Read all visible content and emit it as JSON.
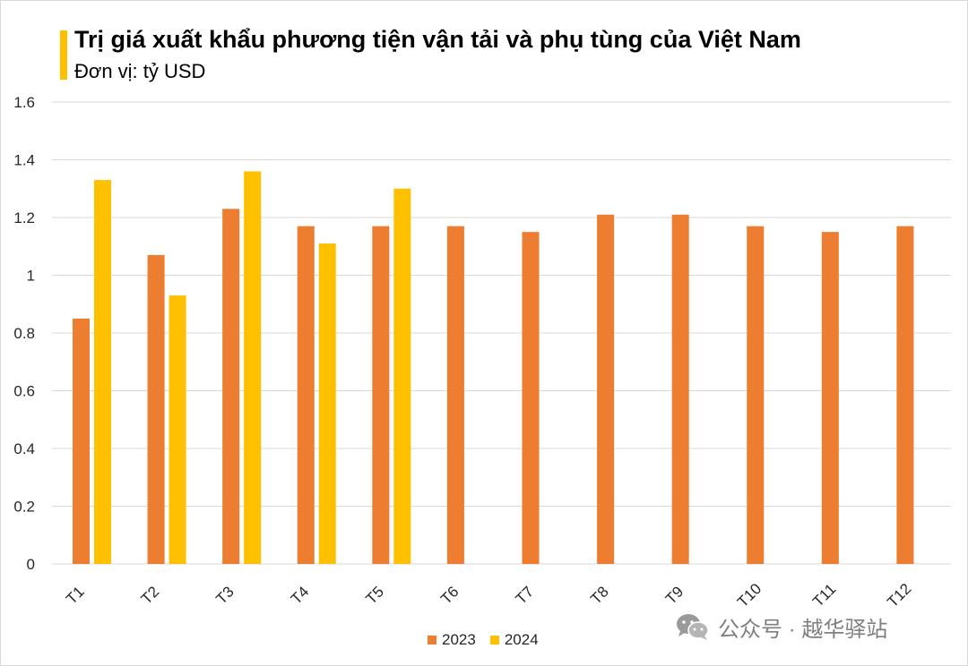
{
  "chart_data": {
    "type": "bar",
    "title": "Trị giá xuất khẩu phương tiện vận tải và phụ tùng của Việt Nam",
    "subtitle": "Đơn vị: tỷ USD",
    "categories": [
      "T1",
      "T2",
      "T3",
      "T4",
      "T5",
      "T6",
      "T7",
      "T8",
      "T9",
      "T10",
      "T11",
      "T12"
    ],
    "series": [
      {
        "name": "2023",
        "color": "#ed7d31",
        "values": [
          0.85,
          1.07,
          1.23,
          1.17,
          1.17,
          1.17,
          1.15,
          1.21,
          1.21,
          1.17,
          1.15,
          1.17
        ]
      },
      {
        "name": "2024",
        "color": "#ffc000",
        "values": [
          1.33,
          0.93,
          1.36,
          1.11,
          1.3,
          null,
          null,
          null,
          null,
          null,
          null,
          null
        ]
      }
    ],
    "ylim": [
      0,
      1.6
    ],
    "yticks": [
      "0",
      "0.2",
      "0.4",
      "0.6",
      "0.8",
      "1",
      "1.2",
      "1.4",
      "1.6"
    ],
    "grid": true,
    "legend_position": "bottom"
  },
  "watermark": {
    "text": "公众号 · 越华驿站",
    "icon": "wechat-icon"
  }
}
